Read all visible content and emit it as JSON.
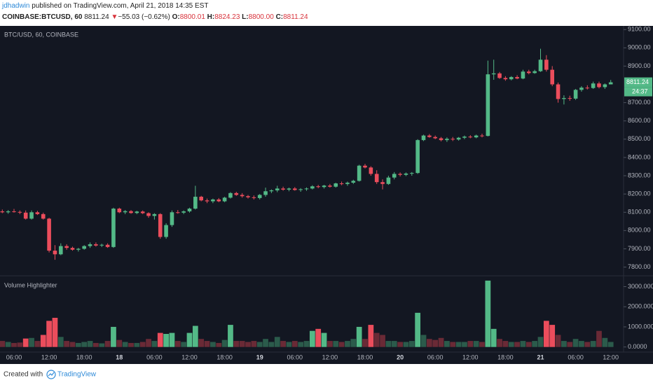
{
  "header": {
    "author": "jdhadwin",
    "published": "published on TradingView.com, April 21, 2018 14:35 EST",
    "symbol": "COINBASE:BTCUSD, 60",
    "last": "8811.24",
    "arrow": "▼",
    "change": "−55.03 (−0.62%)",
    "o_label": "O:",
    "open": "8800.01",
    "h_label": "H:",
    "high": "8824.23",
    "l_label": "L:",
    "low": "8800.00",
    "c_label": "C:",
    "close": "8811.24"
  },
  "chart_data": [
    {
      "type": "candlestick",
      "title": "BTC/USD, 60, COINBASE",
      "price_label": "8811.24",
      "countdown": "24:37",
      "colors": {
        "up": "#53b987",
        "down": "#eb4d5c"
      },
      "ylim": [
        7760,
        9120
      ],
      "yticks": [
        {
          "value": 7800,
          "label": "7800.00"
        },
        {
          "value": 7900,
          "label": "7900.00"
        },
        {
          "value": 8000,
          "label": "8000.00"
        },
        {
          "value": 8100,
          "label": "8100.00"
        },
        {
          "value": 8200,
          "label": "8200.00"
        },
        {
          "value": 8300,
          "label": "8300.00"
        },
        {
          "value": 8400,
          "label": "8400.00"
        },
        {
          "value": 8500,
          "label": "8500.00"
        },
        {
          "value": 8600,
          "label": "8600.00"
        },
        {
          "value": 8700,
          "label": "8700.00"
        },
        {
          "value": 8900,
          "label": "8900.00"
        },
        {
          "value": 9000,
          "label": "9000.00"
        },
        {
          "value": 9100,
          "label": "9100.00"
        }
      ],
      "open": [
        8105,
        8100,
        8105,
        8102,
        8098,
        8065,
        8100,
        8090,
        8065,
        7890,
        7870,
        7915,
        7905,
        7895,
        7900,
        7915,
        7925,
        7918,
        7922,
        7910,
        8120,
        8100,
        8106,
        8096,
        8104,
        8095,
        8080,
        8090,
        7965,
        8030,
        8100,
        8098,
        8105,
        8120,
        8185,
        8165,
        8160,
        8170,
        8160,
        8180,
        8205,
        8195,
        8188,
        8182,
        8178,
        8195,
        8215,
        8220,
        8230,
        8224,
        8230,
        8222,
        8226,
        8230,
        8242,
        8238,
        8246,
        8240,
        8258,
        8255,
        8262,
        8272,
        8355,
        8345,
        8310,
        8265,
        8255,
        8290,
        8310,
        8305,
        8312,
        8315,
        8495,
        8520,
        8512,
        8505,
        8495,
        8502,
        8498,
        8508,
        8514,
        8510,
        8520,
        8518,
        8855,
        8860,
        8835,
        8828,
        8840,
        8832,
        8870,
        8862,
        8872,
        8935,
        8880,
        8800,
        8720,
        8725,
        8722,
        8770,
        8782,
        8780,
        8805,
        8785,
        8800.01
      ],
      "high": [
        8115,
        8112,
        8118,
        8110,
        8110,
        8110,
        8108,
        8098,
        8070,
        7920,
        7930,
        7925,
        7912,
        7905,
        7920,
        7935,
        7935,
        7928,
        7930,
        8125,
        8125,
        8112,
        8112,
        8108,
        8110,
        8100,
        8095,
        8095,
        8040,
        8110,
        8112,
        8110,
        8125,
        8245,
        8190,
        8175,
        8175,
        8178,
        8185,
        8210,
        8212,
        8205,
        8195,
        8192,
        8200,
        8235,
        8225,
        8245,
        8240,
        8235,
        8238,
        8232,
        8236,
        8248,
        8250,
        8250,
        8255,
        8262,
        8268,
        8268,
        8278,
        8360,
        8365,
        8352,
        8330,
        8280,
        8300,
        8320,
        8318,
        8318,
        8320,
        8500,
        8525,
        8528,
        8520,
        8512,
        8510,
        8512,
        8512,
        8520,
        8522,
        8525,
        8530,
        8930,
        8935,
        8868,
        8845,
        8845,
        8850,
        8880,
        8880,
        8880,
        8995,
        8960,
        8900,
        8810,
        8740,
        8738,
        8775,
        8790,
        8795,
        8815,
        8815,
        8805,
        8824.23
      ],
      "low": [
        8095,
        8092,
        8098,
        8090,
        8060,
        8060,
        8085,
        8060,
        7880,
        7840,
        7865,
        7895,
        7890,
        7885,
        7895,
        7905,
        7912,
        7910,
        7905,
        7905,
        8095,
        8090,
        8092,
        8090,
        8090,
        8070,
        8060,
        7955,
        7955,
        8020,
        8092,
        8090,
        8098,
        8115,
        8160,
        8150,
        8150,
        8155,
        8155,
        8175,
        8190,
        8180,
        8175,
        8170,
        8170,
        8185,
        8205,
        8210,
        8218,
        8215,
        8218,
        8212,
        8218,
        8225,
        8232,
        8230,
        8235,
        8235,
        8248,
        8245,
        8255,
        8268,
        8340,
        8300,
        8255,
        8225,
        8250,
        8280,
        8296,
        8298,
        8300,
        8310,
        8490,
        8508,
        8500,
        8488,
        8485,
        8490,
        8492,
        8500,
        8505,
        8505,
        8510,
        8515,
        8825,
        8830,
        8820,
        8822,
        8828,
        8828,
        8855,
        8858,
        8868,
        8870,
        8790,
        8700,
        8690,
        8710,
        8715,
        8760,
        8772,
        8775,
        8778,
        8775,
        8800
      ],
      "close": [
        8100,
        8105,
        8102,
        8098,
        8065,
        8100,
        8090,
        8065,
        7890,
        7870,
        7915,
        7905,
        7895,
        7900,
        7915,
        7925,
        7918,
        7922,
        7910,
        8120,
        8100,
        8106,
        8096,
        8104,
        8095,
        8080,
        8090,
        7965,
        8030,
        8100,
        8098,
        8105,
        8120,
        8185,
        8165,
        8160,
        8170,
        8160,
        8180,
        8205,
        8195,
        8188,
        8182,
        8178,
        8195,
        8215,
        8220,
        8230,
        8224,
        8230,
        8222,
        8226,
        8230,
        8242,
        8238,
        8246,
        8240,
        8258,
        8255,
        8262,
        8272,
        8355,
        8345,
        8310,
        8265,
        8255,
        8290,
        8310,
        8305,
        8312,
        8315,
        8495,
        8520,
        8512,
        8505,
        8495,
        8502,
        8498,
        8508,
        8514,
        8510,
        8520,
        8518,
        8855,
        8860,
        8835,
        8828,
        8840,
        8832,
        8870,
        8862,
        8872,
        8935,
        8880,
        8800,
        8720,
        8725,
        8722,
        8770,
        8782,
        8780,
        8805,
        8785,
        8800,
        8811.24
      ]
    },
    {
      "type": "bar",
      "title": "Volume Highlighter",
      "colors": {
        "up": "#53b987",
        "down": "#eb4d5c",
        "up_dim": "#2b5b4b",
        "down_dim": "#6a2a36"
      },
      "ylim": [
        -150,
        3400
      ],
      "yticks": [
        {
          "value": 0,
          "label": "0.0000"
        },
        {
          "value": 1000,
          "label": "1000.0000"
        },
        {
          "value": 2000,
          "label": "2000.0000"
        },
        {
          "value": 3000,
          "label": "3000.0000"
        }
      ],
      "categories": [
        null,
        null,
        "06:00",
        null,
        null,
        null,
        null,
        null,
        "12:00",
        null,
        null,
        null,
        null,
        null,
        "18:00",
        null,
        null,
        null,
        null,
        null,
        "18",
        null,
        null,
        null,
        null,
        null,
        "06:00",
        null,
        null,
        null,
        null,
        null,
        "12:00",
        null,
        null,
        null,
        null,
        null,
        "18:00",
        null,
        null,
        null,
        null,
        null,
        "19",
        null,
        null,
        null,
        null,
        null,
        "06:00",
        null,
        null,
        null,
        null,
        null,
        "12:00",
        null,
        null,
        null,
        null,
        null,
        "18:00",
        null,
        null,
        null,
        null,
        null,
        "20",
        null,
        null,
        null,
        null,
        null,
        "06:00",
        null,
        null,
        null,
        null,
        null,
        "12:00",
        null,
        null,
        null,
        null,
        null,
        "18:00",
        null,
        null,
        null,
        null,
        null,
        "21",
        null,
        null,
        null,
        null,
        null,
        "06:00",
        null,
        null,
        null,
        null,
        null,
        "12:00"
      ],
      "values": [
        300,
        250,
        200,
        220,
        420,
        450,
        300,
        600,
        1300,
        1450,
        500,
        300,
        250,
        200,
        250,
        300,
        200,
        180,
        300,
        1000,
        350,
        250,
        200,
        200,
        250,
        400,
        300,
        700,
        650,
        700,
        300,
        250,
        700,
        1050,
        400,
        300,
        250,
        200,
        350,
        1100,
        300,
        300,
        250,
        300,
        250,
        400,
        250,
        500,
        300,
        250,
        300,
        250,
        300,
        800,
        900,
        700,
        300,
        300,
        250,
        300,
        400,
        1000,
        400,
        1100,
        700,
        600,
        300,
        300,
        250,
        250,
        300,
        1700,
        600,
        400,
        350,
        450,
        300,
        250,
        250,
        250,
        300,
        300,
        250,
        3300,
        900,
        400,
        300,
        250,
        250,
        300,
        250,
        300,
        500,
        1300,
        1100,
        600,
        300,
        250,
        400,
        300,
        250,
        300,
        800,
        450,
        250
      ]
    }
  ],
  "footer": {
    "created": "Created with",
    "brand": "TradingView"
  }
}
